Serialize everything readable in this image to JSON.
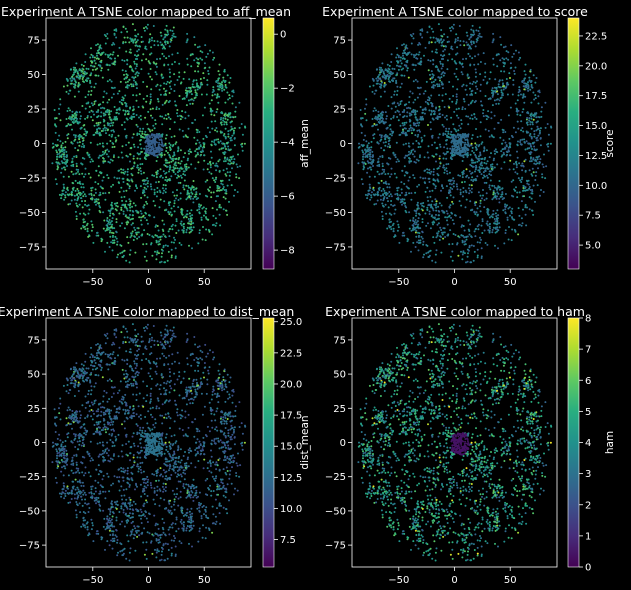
{
  "figure": {
    "background": "#000000",
    "axis_color": "#ffffff",
    "colormap": "viridis"
  },
  "chart_data": [
    {
      "type": "scatter",
      "title": "Experiment A TSNE color mapped to aff_mean",
      "xlabel": "",
      "ylabel": "",
      "xlim": [
        -92,
        92
      ],
      "ylim": [
        -91,
        91
      ],
      "xticks": [
        -50,
        0,
        50
      ],
      "yticks": [
        -75,
        -50,
        -25,
        0,
        25,
        50,
        75
      ],
      "grid": false,
      "colorbar": {
        "label": "aff_mean",
        "range": [
          -8.7,
          0.6
        ],
        "ticks": [
          -8,
          -6,
          -4,
          -2,
          0
        ]
      },
      "points": {
        "description_free": true,
        "count": 2600,
        "cloud_radius": 88,
        "dense_center": [
          5,
          -1
        ]
      }
    },
    {
      "type": "scatter",
      "title": "Experiment A TSNE color mapped to score",
      "xlabel": "",
      "ylabel": "",
      "xlim": [
        -92,
        92
      ],
      "ylim": [
        -91,
        91
      ],
      "xticks": [
        -50,
        0,
        50
      ],
      "yticks": [
        -75,
        -50,
        -25,
        0,
        25,
        50,
        75
      ],
      "grid": false,
      "colorbar": {
        "label": "score",
        "range": [
          3.0,
          24.0
        ],
        "ticks": [
          5.0,
          7.5,
          10.0,
          12.5,
          15.0,
          17.5,
          20.0,
          22.5
        ]
      },
      "points": {
        "description_free": true,
        "count": 2600,
        "cloud_radius": 88,
        "dense_center": [
          5,
          -1
        ]
      }
    },
    {
      "type": "scatter",
      "title": "Experiment A TSNE color mapped to dist_mean",
      "xlabel": "",
      "ylabel": "",
      "xlim": [
        -92,
        92
      ],
      "ylim": [
        -91,
        91
      ],
      "xticks": [
        -50,
        0,
        50
      ],
      "yticks": [
        -75,
        -50,
        -25,
        0,
        25,
        50,
        75
      ],
      "grid": false,
      "colorbar": {
        "label": "dist_mean",
        "range": [
          5.3,
          25.3
        ],
        "ticks": [
          7.5,
          10.0,
          12.5,
          15.0,
          17.5,
          20.0,
          22.5,
          25.0
        ]
      },
      "points": {
        "description_free": true,
        "count": 2600,
        "cloud_radius": 88,
        "dense_center": [
          5,
          -1
        ]
      }
    },
    {
      "type": "scatter",
      "title": "Experiment A TSNE color mapped to ham",
      "xlabel": "",
      "ylabel": "",
      "xlim": [
        -92,
        92
      ],
      "ylim": [
        -91,
        91
      ],
      "xticks": [
        -50,
        0,
        50
      ],
      "yticks": [
        -75,
        -50,
        -25,
        0,
        25,
        50,
        75
      ],
      "grid": false,
      "colorbar": {
        "label": "ham",
        "range": [
          0,
          8
        ],
        "ticks": [
          0,
          1,
          2,
          3,
          4,
          5,
          6,
          7,
          8
        ]
      },
      "points": {
        "description_free": true,
        "count": 2600,
        "cloud_radius": 88,
        "dense_center": [
          5,
          -1
        ]
      }
    }
  ]
}
